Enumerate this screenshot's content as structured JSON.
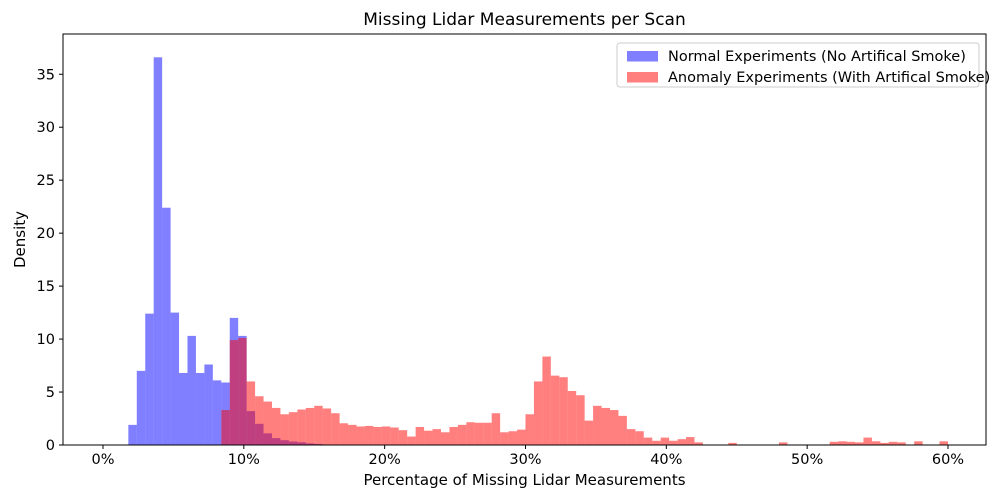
{
  "chart_data": {
    "type": "bar",
    "subtype": "overlaid-histograms",
    "title": "Missing Lidar Measurements per Scan",
    "xlabel": "Percentage of Missing Lidar Measurements",
    "ylabel": "Density",
    "xlim": [
      -2.84,
      62.7
    ],
    "ylim": [
      0,
      38.8
    ],
    "grid": false,
    "x_ticks": {
      "values": [
        0,
        10,
        20,
        30,
        40,
        50,
        60
      ],
      "labels": [
        "0%",
        "10%",
        "20%",
        "30%",
        "40%",
        "50%",
        "60%"
      ]
    },
    "y_ticks": {
      "values": [
        0,
        5,
        10,
        15,
        20,
        25,
        30,
        35
      ],
      "labels": [
        "0",
        "5",
        "10",
        "15",
        "20",
        "25",
        "30",
        "35"
      ]
    },
    "legend": {
      "position": "upper right",
      "entries": [
        "Normal Experiments (No Artifical Smoke)",
        "Anomaly Experiments (With Artifical Smoke)"
      ]
    },
    "series": [
      {
        "name": "Normal Experiments (No Artifical Smoke)",
        "color": "#0000ff",
        "opacity": 0.5,
        "bin_start_percent": 1.8,
        "bin_width_percent": 0.6,
        "densities": [
          1.9,
          7.0,
          12.4,
          36.6,
          22.4,
          12.5,
          6.8,
          10.3,
          6.8,
          7.6,
          6.1,
          5.9,
          12.0,
          10.3,
          3.2,
          2.0,
          1.1,
          0.65,
          0.45,
          0.33,
          0.26,
          0.15,
          0.1
        ]
      },
      {
        "name": "Anomaly Experiments (With Artifical Smoke)",
        "color": "#ff0000",
        "opacity": 0.5,
        "bin_start_percent": 8.4,
        "bin_width_percent": 0.6,
        "densities": [
          3.3,
          9.9,
          10.1,
          6.0,
          4.6,
          4.1,
          3.5,
          2.9,
          3.1,
          3.35,
          3.5,
          3.7,
          3.45,
          3.0,
          2.05,
          1.9,
          1.75,
          1.8,
          1.7,
          1.75,
          1.65,
          1.4,
          0.8,
          1.7,
          1.35,
          1.5,
          1.2,
          1.7,
          1.9,
          2.15,
          2.1,
          2.1,
          3.0,
          1.2,
          1.3,
          1.45,
          2.9,
          6.0,
          8.35,
          6.55,
          6.4,
          5.1,
          4.7,
          2.3,
          3.7,
          3.5,
          3.3,
          2.75,
          1.5,
          1.3,
          0.7,
          0.4,
          0.7,
          0.4,
          0.55,
          0.75,
          0.25,
          0,
          0,
          0,
          0.2,
          0,
          0,
          0,
          0,
          0,
          0.25,
          0,
          0,
          0,
          0,
          0,
          0.3,
          0.35,
          0.3,
          0.25,
          0.7,
          0.35,
          0.2,
          0.3,
          0.25,
          0,
          0.35,
          0,
          0,
          0.35
        ]
      }
    ]
  }
}
